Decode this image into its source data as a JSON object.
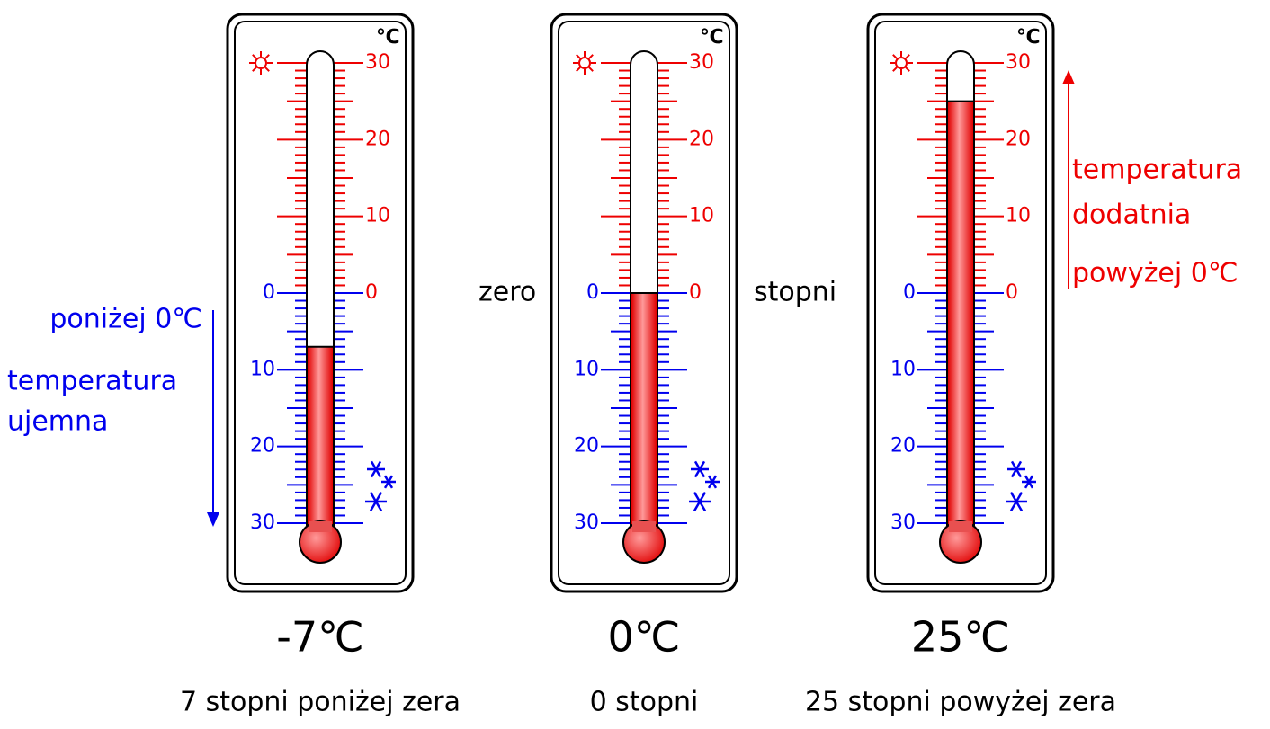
{
  "scale": {
    "unit": "℃",
    "lim": [
      -30,
      30
    ],
    "ticks": [
      30,
      20,
      10,
      0,
      {
        "value": -10,
        "label": "10"
      },
      {
        "value": -20,
        "label": "20"
      },
      {
        "value": -30,
        "label": "30"
      }
    ]
  },
  "thermometers": [
    {
      "value": -7,
      "value_label": "-7℃",
      "caption": "7 stopni poniżej zera"
    },
    {
      "value": 0,
      "value_label": "0℃",
      "caption": "0 stopni"
    },
    {
      "value": 25,
      "value_label": "25℃",
      "caption": "25 stopni powyżej zera"
    }
  ],
  "annotations": {
    "negative": [
      "poniżej 0℃",
      "temperatura",
      "ujemna"
    ],
    "zero": [
      "zero",
      "stopni"
    ],
    "positive": [
      "temperatura",
      "dodatnia",
      "powyżej 0℃"
    ]
  }
}
